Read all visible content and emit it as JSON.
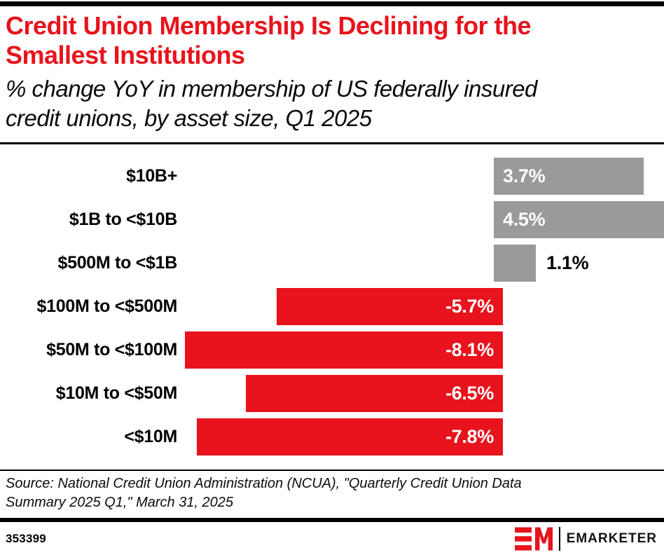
{
  "header": {
    "title": "Credit Union Membership Is Declining for the\nSmallest Institutions",
    "subtitle": "% change YoY in membership of US federally insured\ncredit unions, by asset size, Q1 2025"
  },
  "chart_data": {
    "type": "bar",
    "orientation": "horizontal",
    "title": "Credit Union Membership Is Declining for the Smallest Institutions",
    "subtitle": "% change YoY in membership of US federally insured credit unions, by asset size, Q1 2025",
    "categories": [
      "$10B+",
      "$1B to <$10B",
      "$500M to <$1B",
      "$100M to <$500M",
      "$50M to <$100M",
      "$10M to <$50M",
      "<$10M"
    ],
    "values": [
      3.7,
      4.5,
      1.1,
      -5.7,
      -8.1,
      -6.5,
      -7.8
    ],
    "value_labels": [
      "3.7%",
      "4.5%",
      "1.1%",
      "-5.7%",
      "-8.1%",
      "-6.5%",
      "-7.8%"
    ],
    "xlim": [
      -8.2,
      4.6
    ],
    "grid": false,
    "legend": false,
    "positive_color": "#9a9a9a",
    "negative_color": "#e8131c"
  },
  "source": {
    "text": "Source: National Credit Union Administration (NCUA), \"Quarterly Credit Union Data\nSummary 2025 Q1,\" March 31, 2025"
  },
  "footer": {
    "chart_id": "353399",
    "brand": "EMARKETER"
  },
  "colors": {
    "accent_red": "#e8131c",
    "bar_gray": "#9a9a9a",
    "rule_black": "#000000"
  }
}
